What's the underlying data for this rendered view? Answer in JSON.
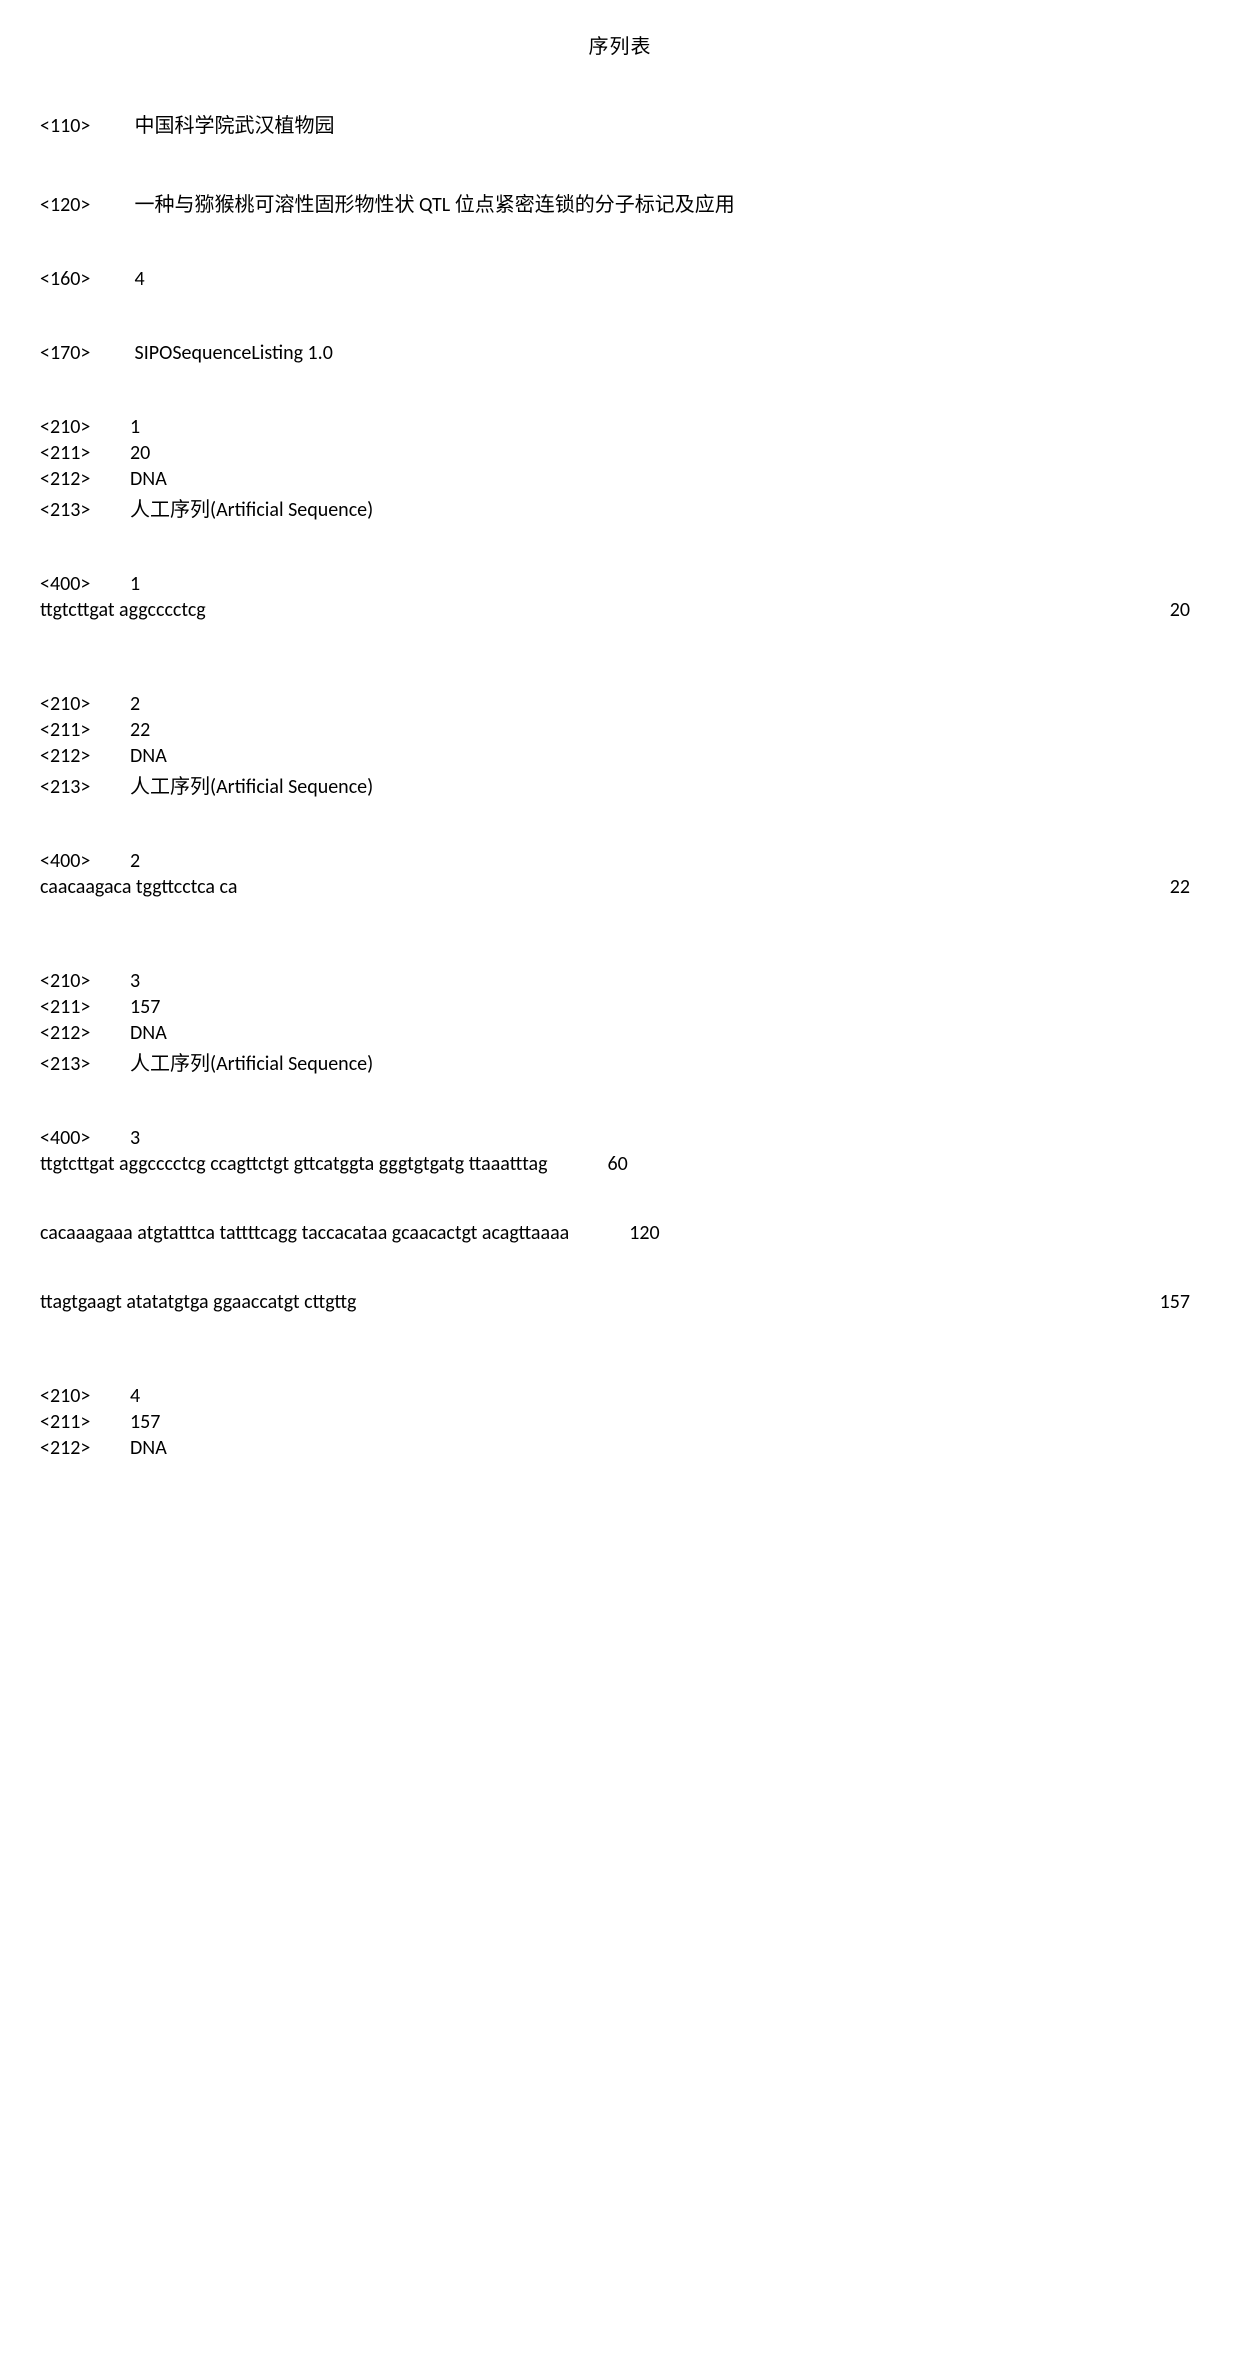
{
  "title": "序列表",
  "headers": {
    "h110": {
      "tag": "<110>",
      "value": "中国科学院武汉植物园"
    },
    "h120": {
      "tag": "<120>",
      "value": "一种与猕猴桃可溶性固形物性状 QTL 位点紧密连锁的分子标记及应用"
    },
    "h160": {
      "tag": "<160>",
      "value": "4"
    },
    "h170": {
      "tag": "<170>",
      "value": "SIPOSequenceListing 1.0"
    }
  },
  "sequences": [
    {
      "tags": [
        {
          "tag": "<210>",
          "value": "1"
        },
        {
          "tag": "<211>",
          "value": "20"
        },
        {
          "tag": "<212>",
          "value": "DNA"
        },
        {
          "tag": "<213>",
          "value": "人工序列(Artificial Sequence)"
        }
      ],
      "data_tag": {
        "tag": "<400>",
        "value": "1"
      },
      "lines": [
        {
          "text": "ttgtcttgat aggcccctcg",
          "count": "20",
          "far": true
        }
      ]
    },
    {
      "tags": [
        {
          "tag": "<210>",
          "value": "2"
        },
        {
          "tag": "<211>",
          "value": "22"
        },
        {
          "tag": "<212>",
          "value": "DNA"
        },
        {
          "tag": "<213>",
          "value": "人工序列(Artificial Sequence)"
        }
      ],
      "data_tag": {
        "tag": "<400>",
        "value": "2"
      },
      "lines": [
        {
          "text": "caacaagaca tggttcctca ca",
          "count": "22",
          "far": true
        }
      ]
    },
    {
      "tags": [
        {
          "tag": "<210>",
          "value": "3"
        },
        {
          "tag": "<211>",
          "value": "157"
        },
        {
          "tag": "<212>",
          "value": "DNA"
        },
        {
          "tag": "<213>",
          "value": "人工序列(Artificial Sequence)"
        }
      ],
      "data_tag": {
        "tag": "<400>",
        "value": "3"
      },
      "lines": [
        {
          "text": "ttgtcttgat aggcccctcg ccagttctgt gttcatggta gggtgtgatg ttaaatttag",
          "count": "60",
          "far": false
        },
        {
          "text": "cacaaagaaa atgtatttca tattttcagg taccacataa gcaacactgt acagttaaaa",
          "count": "120",
          "far": false
        },
        {
          "text": "ttagtgaagt atatatgtga ggaaccatgt cttgttg",
          "count": "157",
          "far": true
        }
      ]
    },
    {
      "tags": [
        {
          "tag": "<210>",
          "value": "4"
        },
        {
          "tag": "<211>",
          "value": "157"
        },
        {
          "tag": "<212>",
          "value": "DNA"
        }
      ]
    }
  ]
}
